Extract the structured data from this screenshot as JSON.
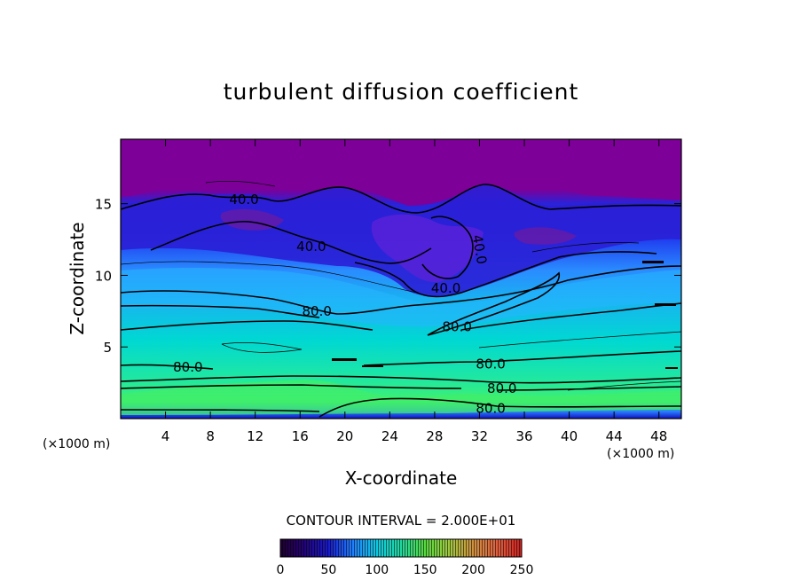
{
  "chart_data": {
    "type": "heatmap",
    "title": "turbulent diffusion coefficient",
    "xlabel": "X-coordinate",
    "ylabel": "Z-coordinate",
    "x_unit_left": "(×1000 m)",
    "x_unit_right": "(×1000 m)",
    "xlim": [
      0,
      50
    ],
    "ylim": [
      0,
      19.5
    ],
    "x_ticks": [
      "4",
      "8",
      "12",
      "16",
      "20",
      "24",
      "28",
      "32",
      "36",
      "40",
      "44",
      "48"
    ],
    "y_ticks": [
      "5",
      "10",
      "15"
    ],
    "contour_interval_label": "CONTOUR INTERVAL = 2.000E+01",
    "colorbar": {
      "range": [
        0,
        250
      ],
      "tick_labels": [
        "0",
        "50",
        "100",
        "150",
        "200",
        "250"
      ]
    },
    "contour_labels": [
      {
        "text": "40.0",
        "x": 11,
        "z": 15.3
      },
      {
        "text": "40.0",
        "x": 17,
        "z": 12.0
      },
      {
        "text": "40.0",
        "x": 29,
        "z": 9.1
      },
      {
        "text": "40.0",
        "x": 32,
        "z": 11.8
      },
      {
        "text": "80.0",
        "x": 17.5,
        "z": 7.5
      },
      {
        "text": "80.0",
        "x": 30,
        "z": 6.4
      },
      {
        "text": "80.0",
        "x": 6,
        "z": 3.6
      },
      {
        "text": "80.0",
        "x": 33,
        "z": 3.8
      },
      {
        "text": "80.0",
        "x": 34,
        "z": 2.1
      },
      {
        "text": "80.0",
        "x": 33,
        "z": 0.7
      }
    ],
    "regions": [
      {
        "z_range": [
          16,
          19.5
        ],
        "value": 10
      },
      {
        "z_range": [
          11,
          16
        ],
        "value": 35
      },
      {
        "z_range": [
          8,
          11
        ],
        "value": 75
      },
      {
        "z_range": [
          2,
          8
        ],
        "value": 95
      },
      {
        "z_range": [
          0.3,
          2
        ],
        "value": 120
      },
      {
        "z_range": [
          0,
          0.3
        ],
        "value": 40
      }
    ],
    "colors": {
      "purple": "#7d0099",
      "dark_blue": "#1818d0",
      "blue": "#2878ff",
      "teal": "#00c4c8",
      "green": "#30f070"
    }
  }
}
